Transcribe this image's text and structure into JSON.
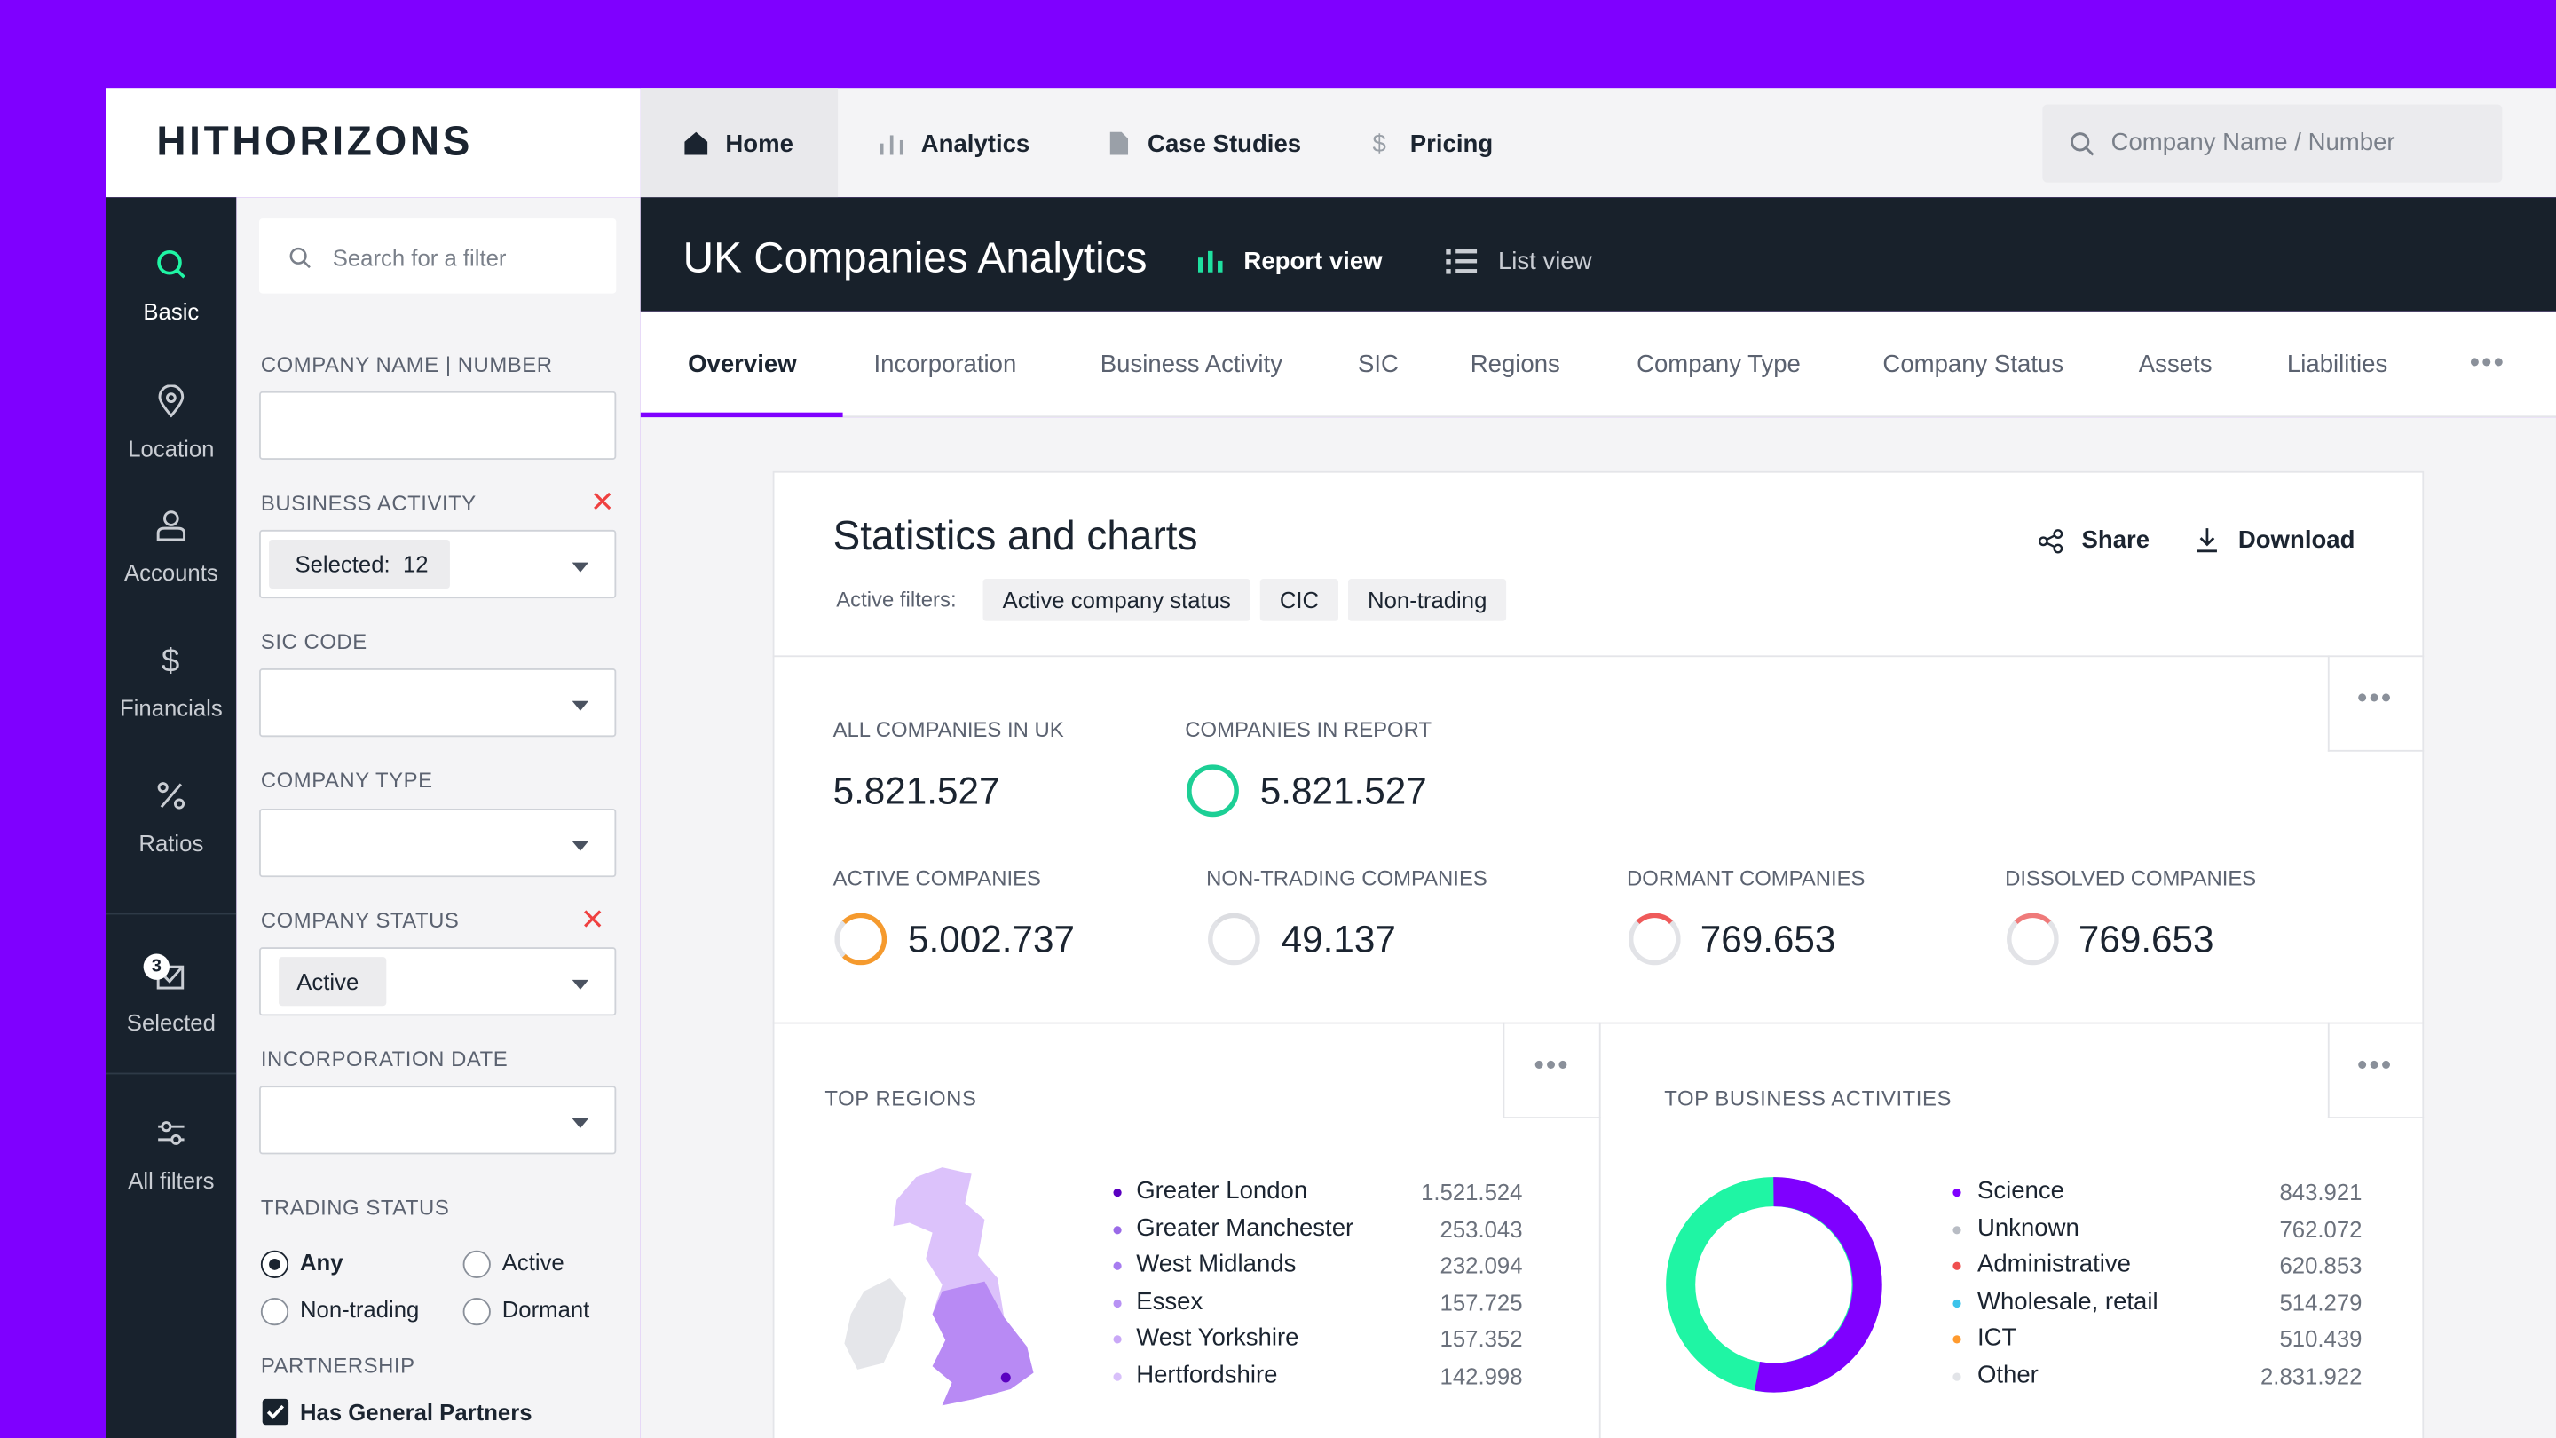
{
  "header": {
    "logo": "HITHORIZONS",
    "nav": [
      "Home",
      "Analytics",
      "Case Studies",
      "Pricing"
    ],
    "search_placeholder": "Company Name / Number"
  },
  "sidebar": {
    "items": [
      "Basic",
      "Location",
      "Accounts",
      "Financials",
      "Ratios",
      "Selected",
      "All filters"
    ],
    "selected_count": 3
  },
  "filters": {
    "search_placeholder": "Search for a filter",
    "company_name_label": "COMPANY NAME | NUMBER",
    "business_activity_label": "BUSINESS ACTIVITY",
    "business_activity_selected": "Selected:",
    "business_activity_count": 12,
    "sic_code_label": "SIC CODE",
    "company_type_label": "COMPANY TYPE",
    "company_status_label": "COMPANY STATUS",
    "company_status_value": "Active",
    "incorporation_date_label": "INCORPORATION DATE",
    "trading_status_label": "TRADING STATUS",
    "trading_options": [
      "Any",
      "Active",
      "Non-trading",
      "Dormant"
    ],
    "partnership_label": "PARTNERSHIP",
    "partnership_option": "Has General Partners"
  },
  "page": {
    "title": "UK Companies Analytics",
    "views": [
      "Report view",
      "List view"
    ],
    "tabs": [
      "Overview",
      "Incorporation",
      "Business Activity",
      "SIC",
      "Regions",
      "Company Type",
      "Company Status",
      "Assets",
      "Liabilities"
    ]
  },
  "report": {
    "title": "Statistics and charts",
    "actions": [
      "Share",
      "Download"
    ],
    "active_filters_label": "Active filters:",
    "active_filters": [
      "Active company status",
      "CIC",
      "Non-trading"
    ],
    "stats": [
      {
        "label": "ALL COMPANIES IN UK",
        "value": "5.821.527"
      },
      {
        "label": "COMPANIES IN REPORT",
        "value": "5.821.527"
      },
      {
        "label": "ACTIVE COMPANIES",
        "value": "5.002.737"
      },
      {
        "label": "NON-TRADING COMPANIES",
        "value": "49.137"
      },
      {
        "label": "DORMANT COMPANIES",
        "value": "769.653"
      },
      {
        "label": "DISSOLVED COMPANIES",
        "value": "769.653"
      }
    ]
  },
  "top_regions": {
    "title": "TOP REGIONS",
    "items": [
      {
        "name": "Greater London",
        "value": "1.521.524"
      },
      {
        "name": "Greater Manchester",
        "value": "253.043"
      },
      {
        "name": "West Midlands",
        "value": "232.094"
      },
      {
        "name": "Essex",
        "value": "157.725"
      },
      {
        "name": "West Yorkshire",
        "value": "157.352"
      },
      {
        "name": "Hertfordshire",
        "value": "142.998"
      }
    ]
  },
  "top_business_activities": {
    "title": "TOP BUSINESS ACTIVITIES",
    "items": [
      {
        "name": "Science",
        "value": "843.921",
        "color": "#7f00ff"
      },
      {
        "name": "Unknown",
        "value": "762.072",
        "color": "#b8bcc4"
      },
      {
        "name": "Administrative",
        "value": "620.853",
        "color": "#ef4f4f"
      },
      {
        "name": "Wholesale, retail",
        "value": "514.279",
        "color": "#3cc3ea"
      },
      {
        "name": "ICT",
        "value": "510.439",
        "color": "#ff9a2e"
      },
      {
        "name": "Other",
        "value": "2.831.922",
        "color": "#e2e4e8"
      }
    ]
  }
}
